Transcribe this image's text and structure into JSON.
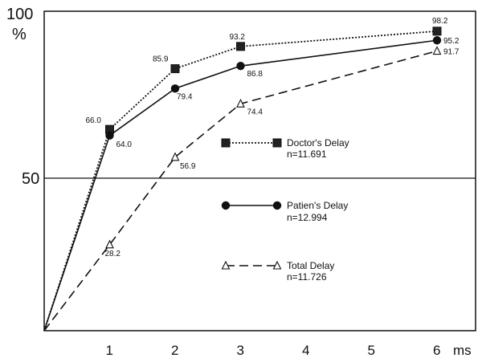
{
  "chart_data": {
    "type": "line",
    "x": [
      0,
      1,
      2,
      3,
      6
    ],
    "xlim": [
      0,
      6.5
    ],
    "ylim": [
      0,
      100
    ],
    "x_ticks": [
      "1",
      "2",
      "3",
      "4",
      "5",
      "6"
    ],
    "x_unit": "ms",
    "y_tick_50": "50",
    "y_tick_100": "100",
    "y_unit": "%",
    "reference_line": 50,
    "series": [
      {
        "name": "Doctor's Delay",
        "n_label": "n=11.691",
        "style": "dotted",
        "marker": "square",
        "color": "#111111",
        "values": [
          0,
          66.0,
          85.9,
          93.2,
          98.2
        ],
        "labels": [
          "",
          "66.0",
          "85.9",
          "93.2",
          "98.2"
        ]
      },
      {
        "name": "Patien's Delay",
        "n_label": "n=12.994",
        "style": "solid",
        "marker": "circle",
        "color": "#111111",
        "values": [
          0,
          64.0,
          79.4,
          86.8,
          95.2
        ],
        "labels": [
          "",
          "64.0",
          "79.4",
          "86.8",
          "95.2"
        ]
      },
      {
        "name": "Total Delay",
        "n_label": "n=11.726",
        "style": "dashed",
        "marker": "triangle",
        "color": "#111111",
        "values": [
          0,
          28.2,
          56.9,
          74.4,
          91.7
        ],
        "labels": [
          "",
          "28.2",
          "56.9",
          "74.4",
          "91.7"
        ]
      }
    ]
  }
}
